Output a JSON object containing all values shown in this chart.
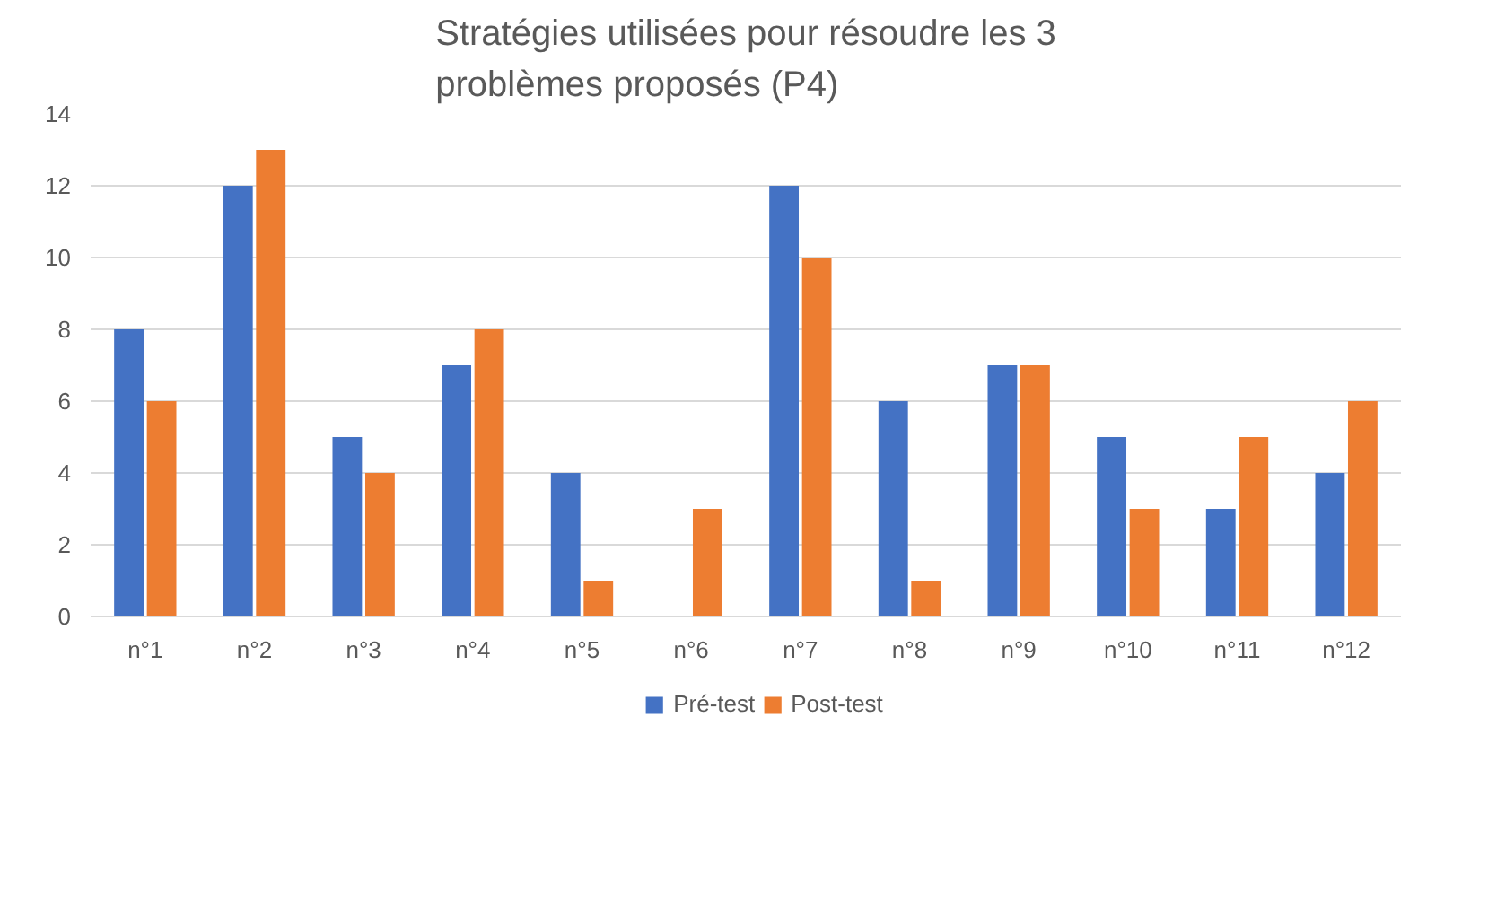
{
  "chart_data": {
    "type": "bar",
    "title": "Stratégies utilisées pour résoudre les 3\nproblèmes proposés (P4)",
    "categories": [
      "n°1",
      "n°2",
      "n°3",
      "n°4",
      "n°5",
      "n°6",
      "n°7",
      "n°8",
      "n°9",
      "n°10",
      "n°11",
      "n°12"
    ],
    "series": [
      {
        "name": "Pré-test",
        "color": "#4472c4",
        "values": [
          8,
          12,
          5,
          7,
          4,
          0,
          12,
          6,
          7,
          5,
          3,
          4
        ]
      },
      {
        "name": "Post-test",
        "color": "#ed7d31",
        "values": [
          6,
          13,
          4,
          8,
          1,
          3,
          10,
          1,
          7,
          3,
          5,
          6
        ]
      }
    ],
    "ylim": [
      0,
      14
    ],
    "yticks": [
      0,
      2,
      4,
      6,
      8,
      10,
      12,
      14
    ],
    "grid": "y",
    "legend": "bottom"
  }
}
